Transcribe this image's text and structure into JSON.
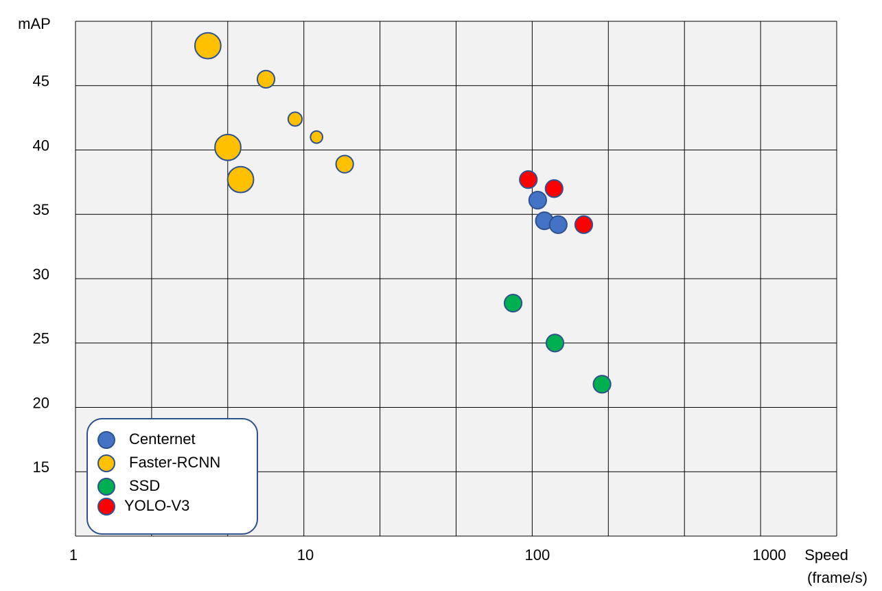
{
  "chart_data": {
    "type": "bubble",
    "ylabel": "mAP",
    "xlabel": [
      "Speed",
      "(frame/s)"
    ],
    "xscale": "log",
    "xlim": [
      1,
      2000
    ],
    "xticks": [
      1,
      10,
      100,
      1000
    ],
    "ylim": [
      10,
      50
    ],
    "yticks": [
      15,
      20,
      25,
      30,
      35,
      40,
      45
    ],
    "grid": true,
    "legend": "lower left",
    "series": [
      {
        "name": "Centernet",
        "color": "#4472c4",
        "x": [
          101,
          108,
          124
        ],
        "values": [
          36.1,
          34.5,
          34.2
        ],
        "sizes": [
          2,
          2,
          2
        ]
      },
      {
        "name": "Faster-RCNN",
        "color": "#ffc000",
        "x": [
          3.75,
          6.7,
          8.96,
          11.1,
          4.58,
          14.7,
          5.2
        ],
        "values": [
          48.1,
          45.5,
          42.4,
          41.0,
          40.2,
          38.9,
          37.7
        ],
        "sizes": [
          3,
          2,
          1.6,
          1.4,
          3,
          2,
          3
        ]
      },
      {
        "name": "SSD",
        "color": "#00b050",
        "x": [
          79,
          120,
          192
        ],
        "values": [
          28.1,
          25.0,
          21.8
        ],
        "sizes": [
          2,
          2,
          2
        ]
      },
      {
        "name": "YOLO-V3",
        "color": "#ff0000",
        "x": [
          92,
          119,
          160
        ],
        "values": [
          37.7,
          37.0,
          34.2
        ],
        "sizes": [
          2,
          2,
          2
        ]
      }
    ]
  }
}
